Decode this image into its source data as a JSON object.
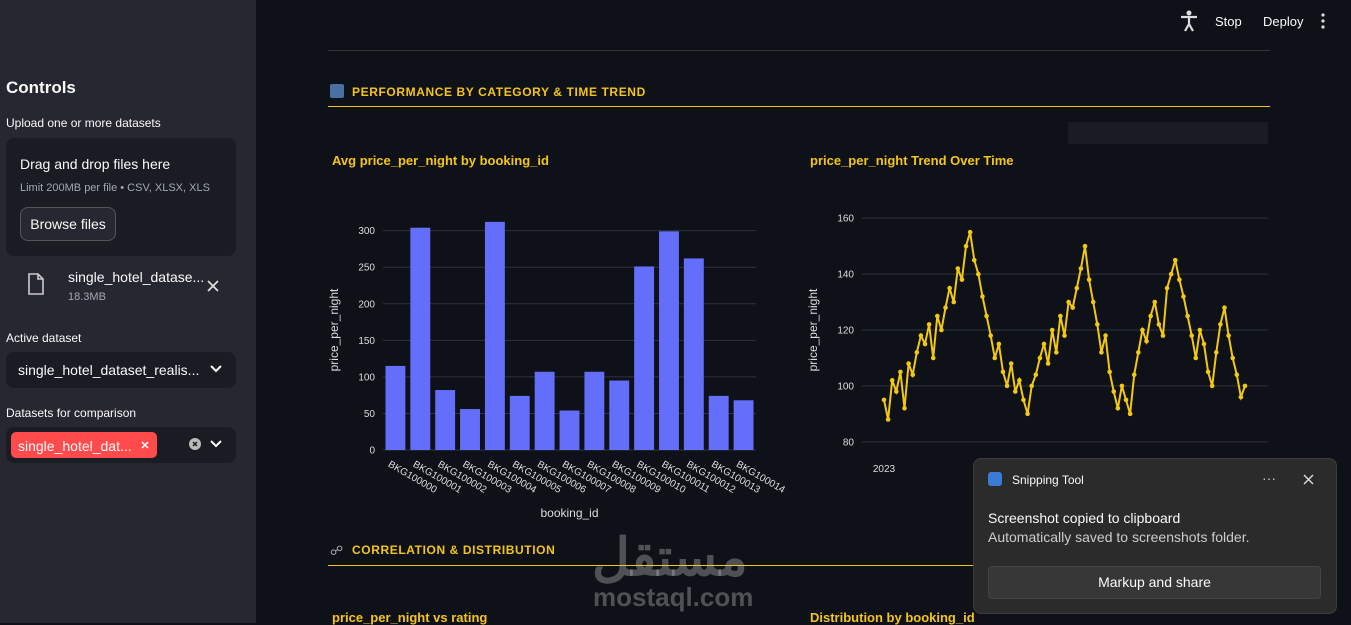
{
  "toolbar": {
    "stop": "Stop",
    "deploy": "Deploy"
  },
  "sidebar": {
    "title": "Controls",
    "upload_label": "Upload one or more datasets",
    "dropzone_title": "Drag and drop files here",
    "dropzone_limit": "Limit 200MB per file • CSV, XLSX, XLS",
    "browse_button": "Browse files",
    "file_name": "single_hotel_datase...",
    "file_size": "18.3MB",
    "active_label": "Active dataset",
    "active_value": "single_hotel_dataset_realis...",
    "compare_label": "Datasets for comparison",
    "compare_tag": "single_hotel_dat..."
  },
  "sections": [
    {
      "title": "PERFORMANCE BY CATEGORY & TIME TREND"
    },
    {
      "title": "CORRELATION & DISTRIBUTION",
      "chart_titles": [
        "price_per_night vs rating",
        "Distribution by booking_id"
      ]
    }
  ],
  "chart_data": [
    {
      "type": "bar",
      "title": "Avg price_per_night by booking_id",
      "x_label": "booking_id",
      "y_label": "price_per_night",
      "color": "#636efa",
      "categories": [
        "BKG100000",
        "BKG100001",
        "BKG100002",
        "BKG100003",
        "BKG100004",
        "BKG100005",
        "BKG100006",
        "BKG100007",
        "BKG100008",
        "BKG100009",
        "BKG100010",
        "BKG100011",
        "BKG100012",
        "BKG100013",
        "BKG100014"
      ],
      "values": [
        115,
        304,
        82,
        56,
        312,
        74,
        107,
        54,
        107,
        95,
        251,
        299,
        262,
        74,
        68
      ],
      "ylim": [
        0,
        320
      ],
      "yticks": [
        0,
        50,
        100,
        150,
        200,
        250,
        300
      ],
      "grid": true
    },
    {
      "type": "line",
      "title": "price_per_night Trend Over Time",
      "y_label": "price_per_night",
      "color": "#f2c811",
      "x_tick_label": "2023",
      "values": [
        95,
        88,
        102,
        98,
        105,
        92,
        108,
        104,
        112,
        118,
        115,
        122,
        110,
        125,
        120,
        128,
        135,
        130,
        142,
        138,
        150,
        155,
        145,
        140,
        132,
        125,
        118,
        110,
        115,
        105,
        100,
        108,
        98,
        102,
        95,
        90,
        100,
        104,
        110,
        115,
        108,
        120,
        112,
        125,
        118,
        130,
        128,
        135,
        142,
        150,
        138,
        130,
        122,
        112,
        118,
        105,
        98,
        92,
        100,
        95,
        90,
        104,
        112,
        120,
        116,
        125,
        130,
        122,
        118,
        135,
        140,
        145,
        138,
        132,
        125,
        118,
        110,
        120,
        115,
        105,
        100,
        112,
        122,
        128,
        118,
        110,
        104,
        96,
        100
      ],
      "ylim": [
        76,
        164
      ],
      "yticks": [
        80,
        100,
        120,
        140,
        160
      ],
      "grid": true
    }
  ],
  "toast": {
    "app": "Snipping Tool",
    "heading": "Screenshot copied to clipboard",
    "body": "Automatically saved to screenshots folder.",
    "button": "Markup and share"
  },
  "watermark": {
    "arabic": "مستقل",
    "latin": "mostaql.com"
  }
}
